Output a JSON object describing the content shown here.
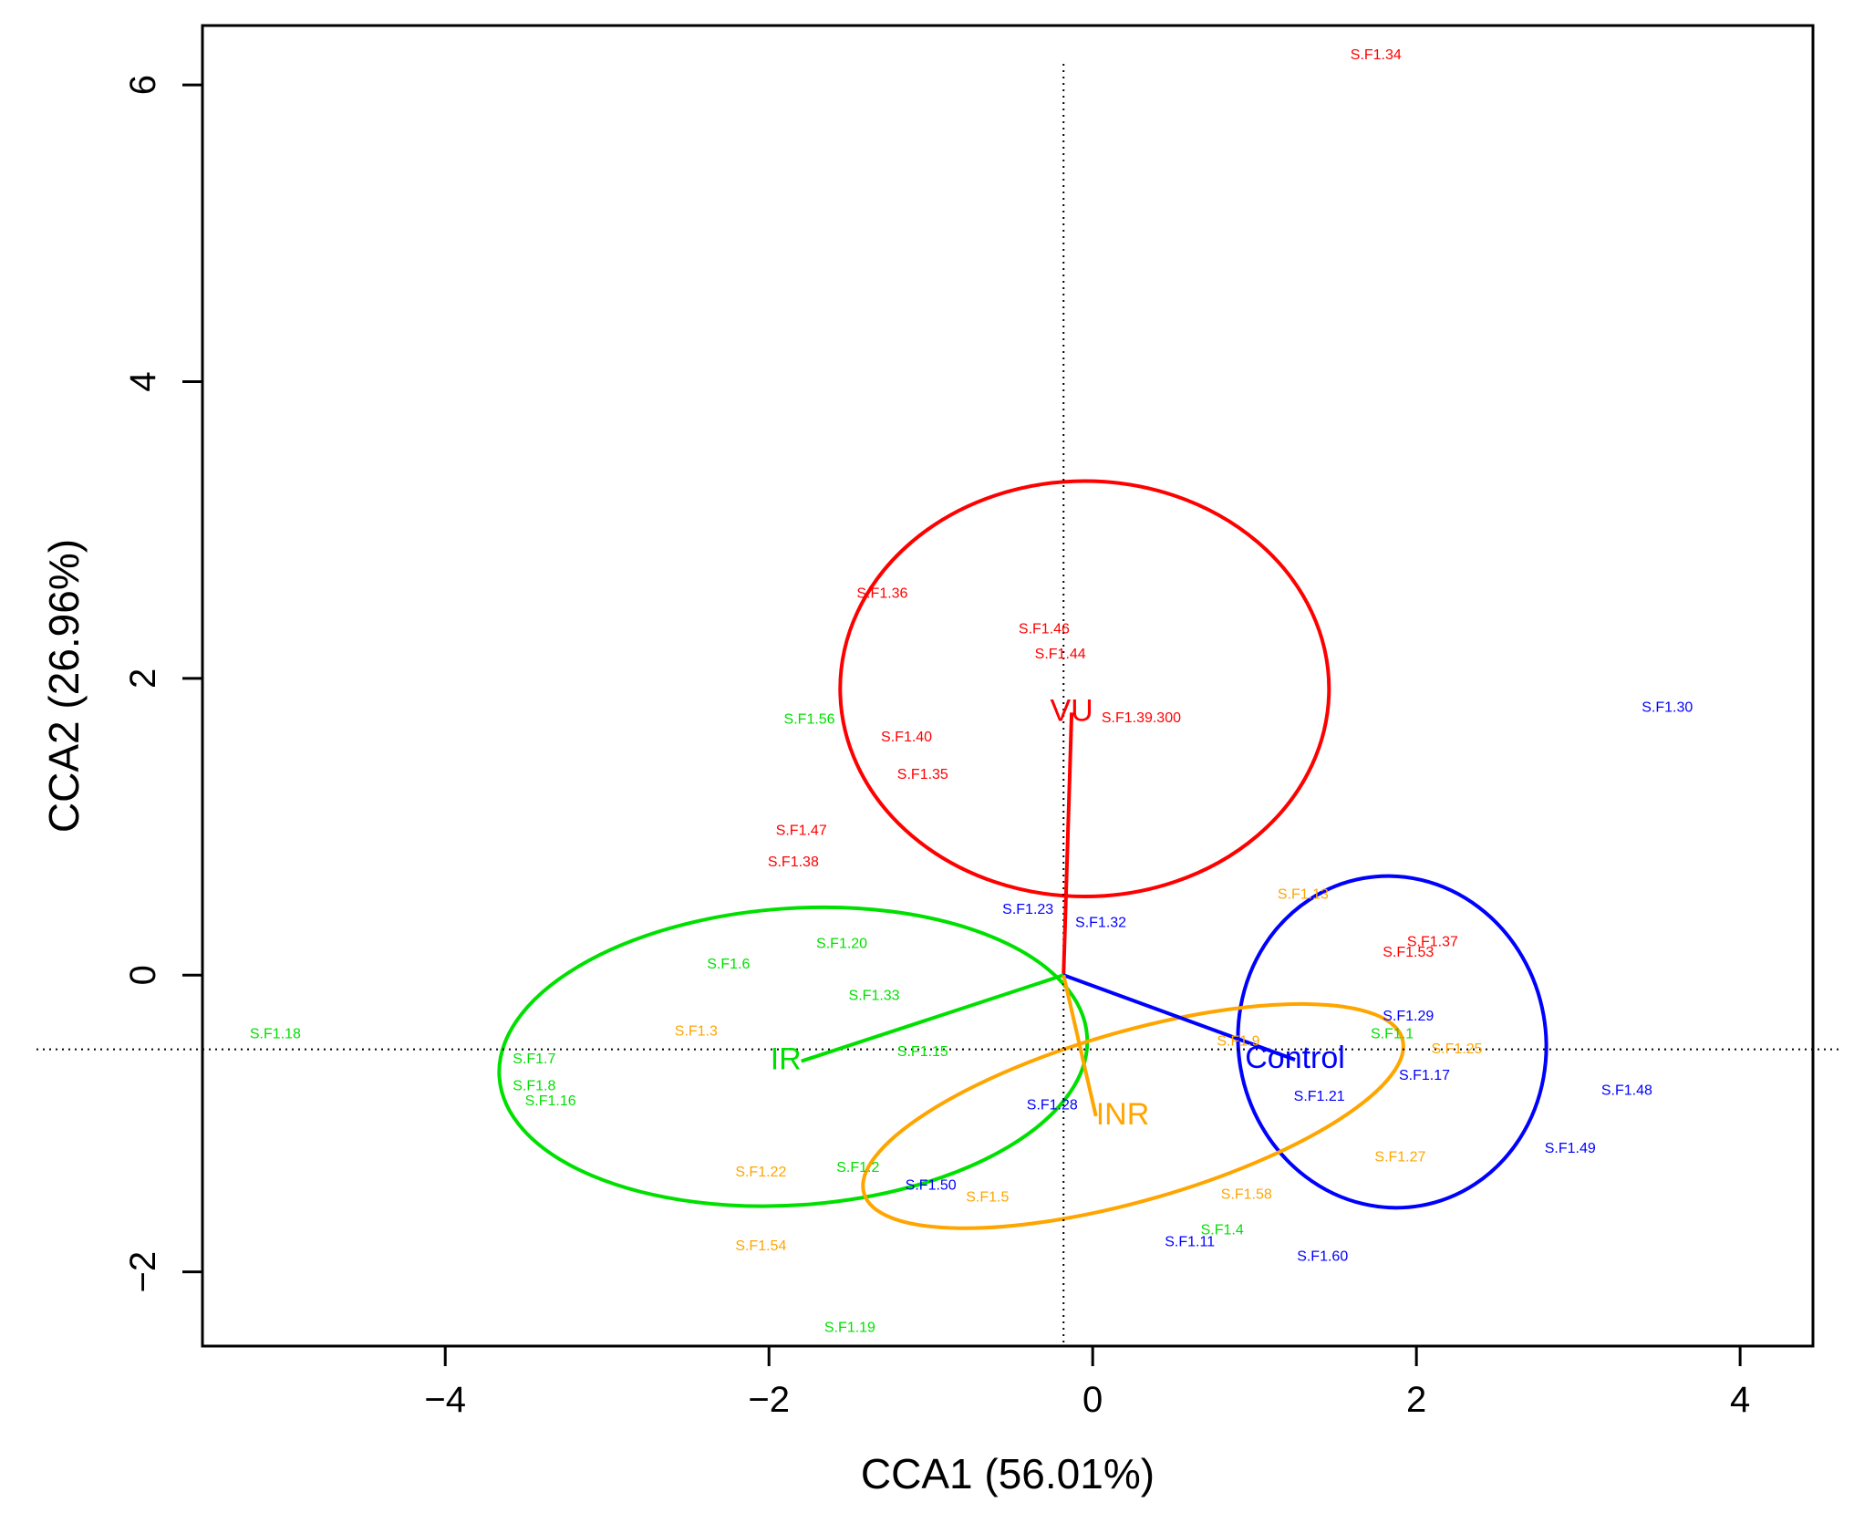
{
  "chart_data": {
    "type": "scatter",
    "title": "",
    "xlabel": "CCA1 (56.01%)",
    "ylabel": "CCA2 (26.96%)",
    "xlim": [
      -5.5,
      4.45
    ],
    "ylim": [
      -2.5,
      6.4
    ],
    "xticks": [
      -4,
      -2,
      0,
      2,
      4
    ],
    "yticks": [
      -2,
      0,
      2,
      4,
      6
    ],
    "xtick_labels": [
      "−4",
      "−2",
      "0",
      "2",
      "4"
    ],
    "ytick_labels": [
      "−2",
      "0",
      "2",
      "4",
      "6"
    ],
    "reference_lines": {
      "x": -0.18,
      "y": -0.5
    },
    "groups": [
      {
        "name": "VU",
        "color": "#ff0000",
        "centroid": [
          -0.13,
          1.77
        ],
        "ellipse": {
          "center": [
            -0.05,
            1.93
          ],
          "rx": 1.51,
          "ry": 1.4,
          "angle_deg": 0
        },
        "points": [
          {
            "label": "S.F1.34",
            "x": 1.75,
            "y": 6.2
          },
          {
            "label": "S.F1.36",
            "x": -1.3,
            "y": 2.57
          },
          {
            "label": "S.F1.46",
            "x": -0.3,
            "y": 2.33
          },
          {
            "label": "S.F1.44",
            "x": -0.2,
            "y": 2.16
          },
          {
            "label": "S.F1.39.300",
            "x": 0.3,
            "y": 1.73
          },
          {
            "label": "S.F1.40",
            "x": -1.15,
            "y": 1.6
          },
          {
            "label": "S.F1.35",
            "x": -1.05,
            "y": 1.35
          },
          {
            "label": "S.F1.47",
            "x": -1.8,
            "y": 0.97
          },
          {
            "label": "S.F1.38",
            "x": -1.85,
            "y": 0.76
          },
          {
            "label": "S.F1.37",
            "x": 2.1,
            "y": 0.22
          },
          {
            "label": "S.F1.53",
            "x": 1.95,
            "y": 0.15
          }
        ]
      },
      {
        "name": "IR",
        "color": "#00e000",
        "centroid": [
          -1.8,
          -0.58
        ],
        "ellipse": {
          "center": [
            -1.85,
            -0.55
          ],
          "rx": 1.82,
          "ry": 1.0,
          "angle_deg": 4
        },
        "points": [
          {
            "label": "S.F1.56",
            "x": -1.75,
            "y": 1.72
          },
          {
            "label": "S.F1.20",
            "x": -1.55,
            "y": 0.21
          },
          {
            "label": "S.F1.6",
            "x": -2.25,
            "y": 0.07
          },
          {
            "label": "S.F1.33",
            "x": -1.35,
            "y": -0.14
          },
          {
            "label": "S.F1.18",
            "x": -5.05,
            "y": -0.4
          },
          {
            "label": "S.F1.7",
            "x": -3.45,
            "y": -0.57
          },
          {
            "label": "S.F1.8",
            "x": -3.45,
            "y": -0.75
          },
          {
            "label": "S.F1.16",
            "x": -3.35,
            "y": -0.85
          },
          {
            "label": "S.F1.15",
            "x": -1.05,
            "y": -0.52
          },
          {
            "label": "S.F1.2",
            "x": -1.45,
            "y": -1.3
          },
          {
            "label": "S.F1.4",
            "x": 0.8,
            "y": -1.72
          },
          {
            "label": "S.F1.1",
            "x": 1.85,
            "y": -0.4
          },
          {
            "label": "S.F1.19",
            "x": -1.5,
            "y": -2.38
          }
        ]
      },
      {
        "name": "Control",
        "color": "#0000ff",
        "centroid": [
          1.25,
          -0.57
        ],
        "ellipse": {
          "center": [
            1.85,
            -0.45
          ],
          "rx": 0.95,
          "ry": 1.12,
          "angle_deg": 10
        },
        "points": [
          {
            "label": "S.F1.30",
            "x": 3.55,
            "y": 1.8
          },
          {
            "label": "S.F1.23",
            "x": -0.4,
            "y": 0.44
          },
          {
            "label": "S.F1.32",
            "x": 0.05,
            "y": 0.35
          },
          {
            "label": "S.F1.29",
            "x": 1.95,
            "y": -0.28
          },
          {
            "label": "S.F1.17",
            "x": 2.05,
            "y": -0.68
          },
          {
            "label": "S.F1.48",
            "x": 3.3,
            "y": -0.78
          },
          {
            "label": "S.F1.21",
            "x": 1.4,
            "y": -0.82
          },
          {
            "label": "S.F1.28",
            "x": -0.25,
            "y": -0.88
          },
          {
            "label": "S.F1.49",
            "x": 2.95,
            "y": -1.17
          },
          {
            "label": "S.F1.50",
            "x": -1.0,
            "y": -1.42
          },
          {
            "label": "S.F1.11",
            "x": 0.6,
            "y": -1.8
          },
          {
            "label": "S.F1.60",
            "x": 1.42,
            "y": -1.9
          }
        ]
      },
      {
        "name": "INR",
        "color": "#ffa500",
        "centroid": [
          0.02,
          -0.95
        ],
        "ellipse": {
          "center": [
            0.25,
            -0.95
          ],
          "rx": 1.73,
          "ry": 0.57,
          "angle_deg": 16
        },
        "points": [
          {
            "label": "S.F1.13",
            "x": 1.3,
            "y": 0.54
          },
          {
            "label": "S.F1.3",
            "x": -2.45,
            "y": -0.38
          },
          {
            "label": "S.F1.9",
            "x": 0.9,
            "y": -0.45
          },
          {
            "label": "S.F1.25",
            "x": 2.25,
            "y": -0.5
          },
          {
            "label": "S.F1.27",
            "x": 1.9,
            "y": -1.23
          },
          {
            "label": "S.F1.22",
            "x": -2.05,
            "y": -1.33
          },
          {
            "label": "S.F1.5",
            "x": -0.65,
            "y": -1.5
          },
          {
            "label": "S.F1.58",
            "x": 0.95,
            "y": -1.48
          },
          {
            "label": "S.F1.54",
            "x": -2.05,
            "y": -1.83
          }
        ]
      }
    ]
  }
}
